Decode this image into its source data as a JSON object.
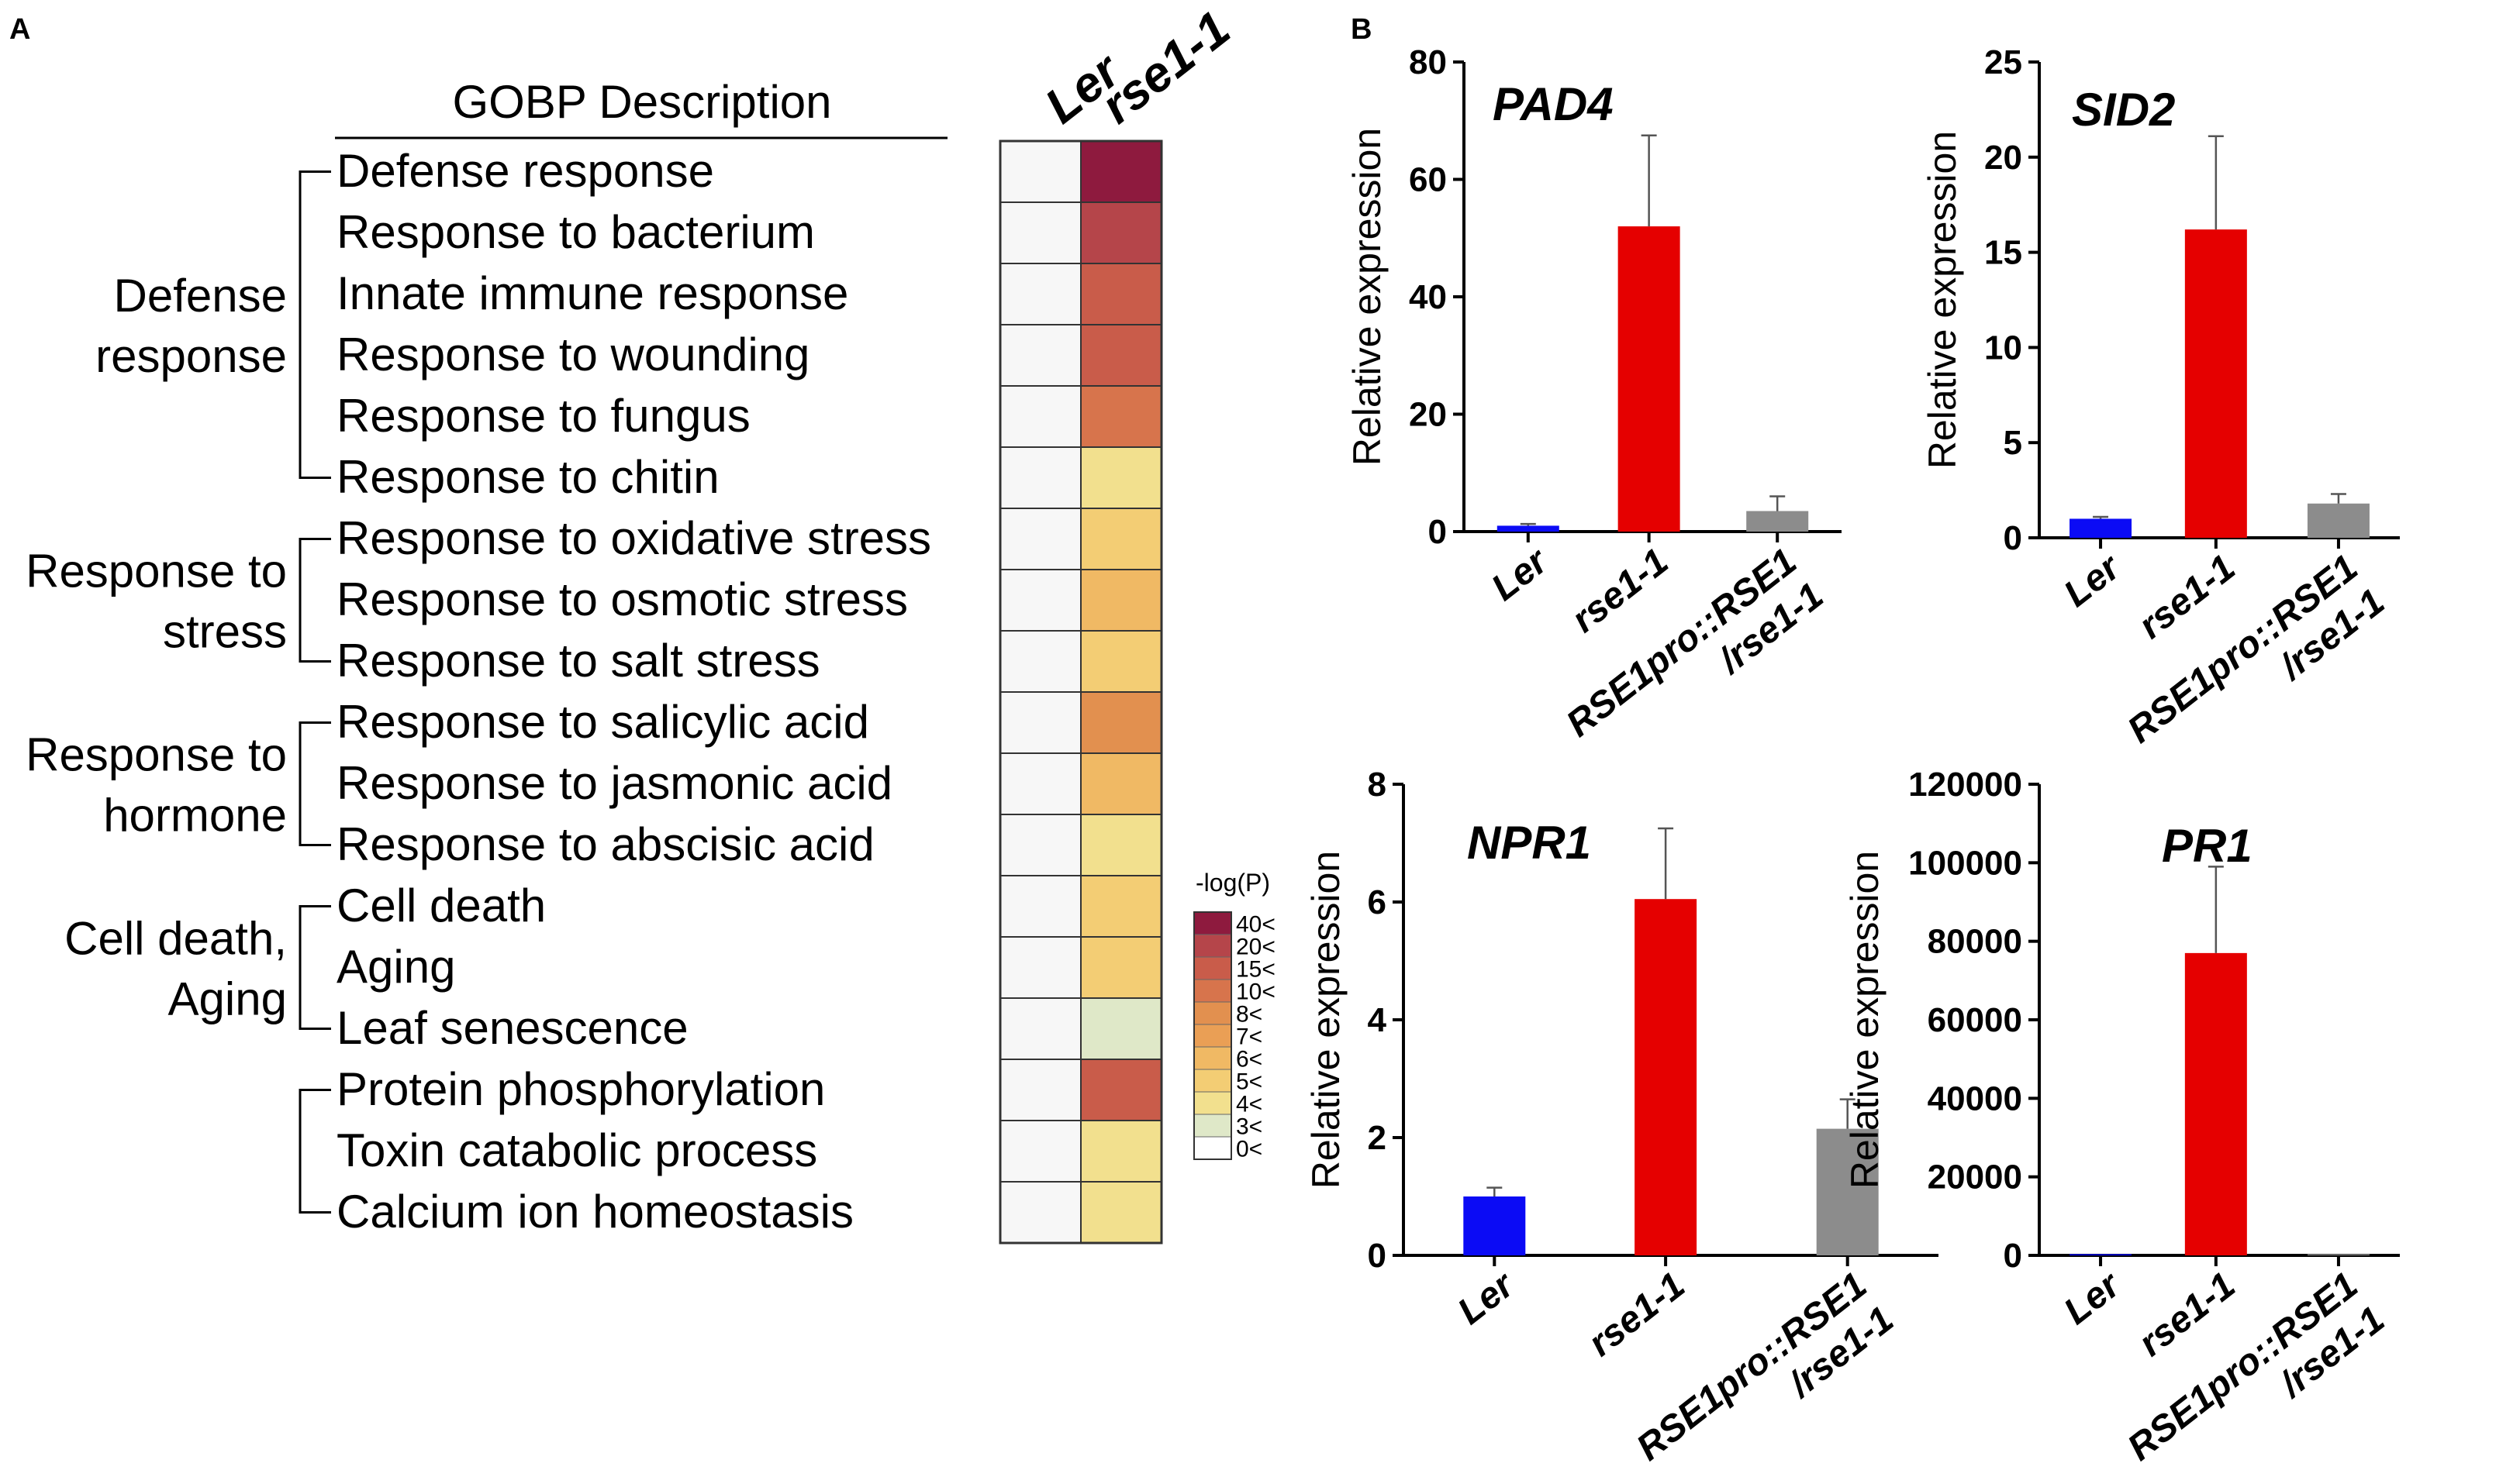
{
  "panels": {
    "a": "A",
    "b": "B"
  },
  "heatmap": {
    "header": "GOBP Description",
    "columns": [
      "Ler",
      "rse1-1"
    ],
    "legend_title": "-log(P)",
    "legend": [
      {
        "label": "40<",
        "color": "#8e1a3e"
      },
      {
        "label": "20<",
        "color": "#b5454a"
      },
      {
        "label": "15<",
        "color": "#c95c4a"
      },
      {
        "label": "10<",
        "color": "#d7744c"
      },
      {
        "label": "8<",
        "color": "#e2904f"
      },
      {
        "label": "7<",
        "color": "#ea9f55"
      },
      {
        "label": "6<",
        "color": "#f0b964"
      },
      {
        "label": "5<",
        "color": "#f3cd74"
      },
      {
        "label": "4<",
        "color": "#f2e08e"
      },
      {
        "label": "3<",
        "color": "#dfe8c8"
      },
      {
        "label": "0<",
        "color": "#ffffff"
      }
    ],
    "groups": [
      {
        "label": [
          "Defense",
          "response"
        ],
        "start": 0,
        "end": 5
      },
      {
        "label": [
          "Response to",
          "stress"
        ],
        "start": 6,
        "end": 8
      },
      {
        "label": [
          "Response to",
          "hormone"
        ],
        "start": 9,
        "end": 11
      },
      {
        "label": [
          "Cell death,",
          "Aging"
        ],
        "start": 12,
        "end": 14
      },
      {
        "label": [],
        "start": 15,
        "end": 17
      }
    ],
    "rows": [
      {
        "term": "Defense response",
        "ler": "#f7f7f7",
        "rse": "#8e1a3e"
      },
      {
        "term": "Response to bacterium",
        "ler": "#f7f7f7",
        "rse": "#b5454a"
      },
      {
        "term": "Innate immune response",
        "ler": "#f7f7f7",
        "rse": "#c95c4a"
      },
      {
        "term": "Response to wounding",
        "ler": "#f7f7f7",
        "rse": "#c95c4a"
      },
      {
        "term": "Response to fungus",
        "ler": "#f7f7f7",
        "rse": "#d7744c"
      },
      {
        "term": "Response to chitin",
        "ler": "#f7f7f7",
        "rse": "#f2e08e"
      },
      {
        "term": "Response to oxidative stress",
        "ler": "#f7f7f7",
        "rse": "#f3cd74"
      },
      {
        "term": "Response to osmotic stress",
        "ler": "#f7f7f7",
        "rse": "#f0b964"
      },
      {
        "term": "Response to salt stress",
        "ler": "#f7f7f7",
        "rse": "#f3cd74"
      },
      {
        "term": "Response to salicylic acid",
        "ler": "#f7f7f7",
        "rse": "#e2904f"
      },
      {
        "term": "Response to jasmonic acid",
        "ler": "#f7f7f7",
        "rse": "#f0b964"
      },
      {
        "term": "Response to abscisic acid",
        "ler": "#f7f7f7",
        "rse": "#f2e08e"
      },
      {
        "term": "Cell death",
        "ler": "#f7f7f7",
        "rse": "#f3cd74"
      },
      {
        "term": "Aging",
        "ler": "#f7f7f7",
        "rse": "#f3cd74"
      },
      {
        "term": "Leaf senescence",
        "ler": "#f7f7f7",
        "rse": "#dfe8c8"
      },
      {
        "term": "Protein phosphorylation",
        "ler": "#f7f7f7",
        "rse": "#c95c4a"
      },
      {
        "term": "Toxin catabolic process",
        "ler": "#f7f7f7",
        "rse": "#f2e08e"
      },
      {
        "term": "Calcium ion homeostasis",
        "ler": "#f7f7f7",
        "rse": "#f2e08e"
      }
    ]
  },
  "chart_data": [
    {
      "type": "bar",
      "title": "PAD4",
      "ylabel": "Relative expression",
      "categories": [
        "Ler",
        "rse1-1",
        [
          "RSE1pro::RSE1",
          "/rse1-1"
        ]
      ],
      "values": [
        1.0,
        52.0,
        3.5
      ],
      "errors": [
        0.3,
        15.5,
        2.5
      ],
      "colors": [
        "#0b0bf5",
        "#e50000",
        "#8c8c8c"
      ],
      "ylim": [
        0,
        80
      ],
      "yticks": [
        0,
        20,
        40,
        60,
        80
      ]
    },
    {
      "type": "bar",
      "title": "SID2",
      "ylabel": "Relative expression",
      "categories": [
        "Ler",
        "rse1-1",
        [
          "RSE1pro::RSE1",
          "/rse1-1"
        ]
      ],
      "values": [
        1.0,
        16.2,
        1.8
      ],
      "errors": [
        0.1,
        4.9,
        0.5
      ],
      "colors": [
        "#0b0bf5",
        "#e50000",
        "#8c8c8c"
      ],
      "ylim": [
        0,
        25
      ],
      "yticks": [
        0,
        5,
        10,
        15,
        20,
        25
      ]
    },
    {
      "type": "bar",
      "title": "NPR1",
      "ylabel": "Relative expression",
      "categories": [
        "Ler",
        "rse1-1",
        [
          "RSE1pro::RSE1",
          "/rse1-1"
        ]
      ],
      "values": [
        1.0,
        6.05,
        2.15
      ],
      "errors": [
        0.15,
        1.2,
        0.5
      ],
      "colors": [
        "#0b0bf5",
        "#e50000",
        "#8c8c8c"
      ],
      "ylim": [
        0,
        8
      ],
      "yticks": [
        0,
        2,
        4,
        6,
        8
      ]
    },
    {
      "type": "bar",
      "title": "PR1",
      "ylabel": "Relative expression",
      "categories": [
        "Ler",
        "rse1-1",
        [
          "RSE1pro::RSE1",
          "/rse1-1"
        ]
      ],
      "values": [
        0,
        77000,
        0
      ],
      "errors": [
        0,
        22000,
        0
      ],
      "colors": [
        "#0b0bf5",
        "#e50000",
        "#8c8c8c"
      ],
      "ylim": [
        0,
        120000
      ],
      "yticks": [
        0,
        20000,
        40000,
        60000,
        80000,
        100000,
        120000
      ]
    }
  ]
}
